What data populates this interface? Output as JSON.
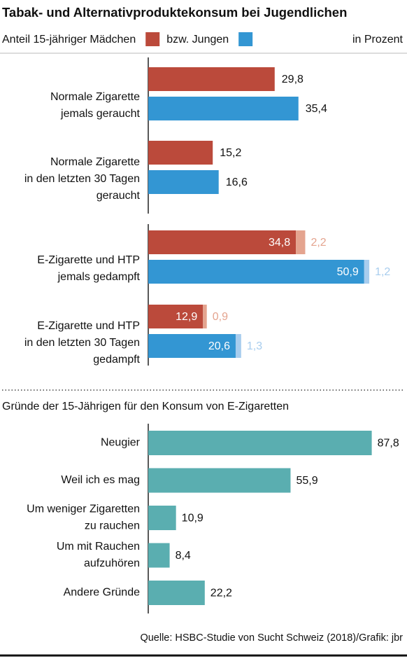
{
  "source": "Quelle: HSBC-Studie von Sucht Schweiz (2018)/Grafik: jbr",
  "chart_data": [
    {
      "type": "hbar-stacked",
      "title": "Tabak- und Alternativproduktekonsum bei Jugendlichen",
      "unit_label": "in Prozent",
      "categories": [
        "Normale Zigarette\njemals geraucht",
        "Normale Zigarette\nin den letzten 30 Tagen\ngeraucht",
        "E-Zigarette und HTP\njemals gedampft",
        "E-Zigarette und HTP\nin den letzten 30 Tagen\ngedampft"
      ],
      "xlim": [
        0,
        60
      ],
      "series": [
        {
          "name": "Anteil 15-jähriger Mädchen",
          "color": "#bb4a3b",
          "stack": "m",
          "values": [
            29.8,
            15.2,
            34.8,
            12.9
          ],
          "value_labels": [
            "29,8",
            "15,2",
            "34,8",
            "12,9"
          ]
        },
        {
          "name": "bzw. Jungen",
          "color": "#3396d3",
          "stack": "j",
          "values": [
            35.4,
            16.6,
            50.9,
            20.6
          ],
          "value_labels": [
            "35,4",
            "16,6",
            "50,9",
            "20,6"
          ]
        },
        {
          "color": "#e4a48f",
          "stack": "m",
          "values": [
            null,
            null,
            2.2,
            0.9
          ],
          "value_labels": [
            null,
            null,
            "2,2",
            "0,9"
          ]
        },
        {
          "color": "#a8cdee",
          "stack": "j",
          "values": [
            null,
            null,
            1.2,
            1.3
          ],
          "value_labels": [
            null,
            null,
            "1,2",
            "1,3"
          ]
        }
      ]
    },
    {
      "type": "hbar",
      "title": "Gründe der 15-Jährigen für den Konsum von E-Zigaretten",
      "categories": [
        "Neugier",
        "Weil ich es mag",
        "Um weniger Zigaretten\nzu rauchen",
        "Um mit Rauchen\naufzuhören",
        "Andere Gründe"
      ],
      "xlim": [
        0,
        100
      ],
      "color": "#5aaeb0",
      "values": [
        87.8,
        55.9,
        10.9,
        8.4,
        22.2
      ],
      "value_labels": [
        "87,8",
        "55,9",
        "10,9",
        "8,4",
        "22,2"
      ]
    }
  ]
}
